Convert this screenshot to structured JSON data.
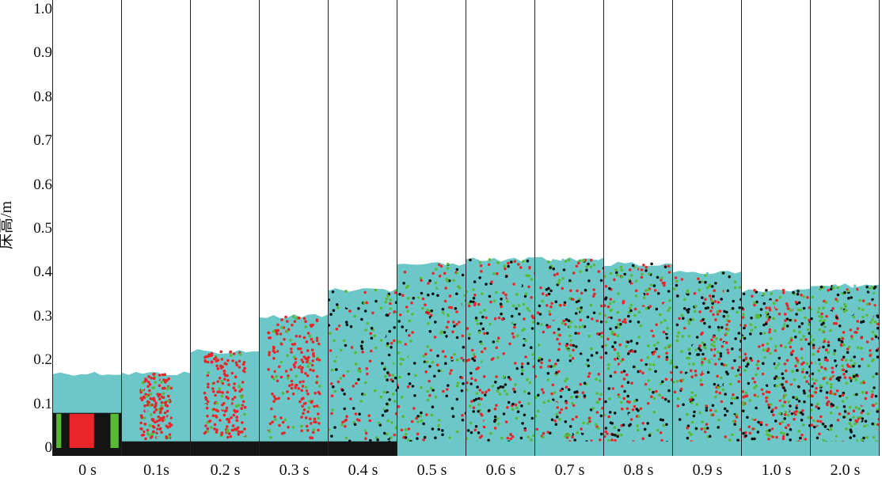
{
  "y_axis": {
    "label": "床高/m",
    "ticks": [
      "0",
      "0.1",
      "0.2",
      "0.3",
      "0.4",
      "0.5",
      "0.6",
      "0.7",
      "0.8",
      "0.9",
      "1.0"
    ]
  },
  "panels": [
    {
      "time": "0 s"
    },
    {
      "time": "0.1s"
    },
    {
      "time": "0.2 s"
    },
    {
      "time": "0.3 s"
    },
    {
      "time": "0.4 s"
    },
    {
      "time": "0.5 s"
    },
    {
      "time": "0.6 s"
    },
    {
      "time": "0.7 s"
    },
    {
      "time": "0.8 s"
    },
    {
      "time": "0.9 s"
    },
    {
      "time": "1.0 s"
    },
    {
      "time": "2.0 s"
    }
  ],
  "colors": {
    "cyan": "#6cc8c8",
    "red": "#e8262a",
    "green": "#58b934",
    "black": "#141414"
  }
}
